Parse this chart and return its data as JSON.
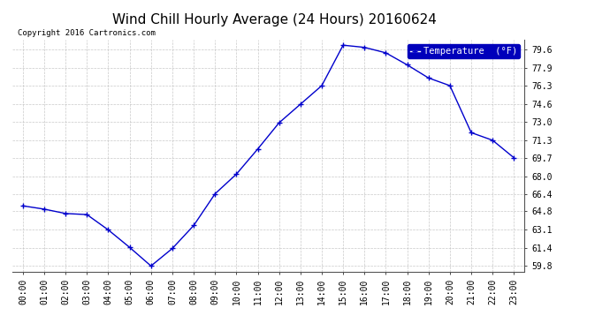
{
  "title": "Wind Chill Hourly Average (24 Hours) 20160624",
  "copyright": "Copyright 2016 Cartronics.com",
  "legend_label": "Temperature  (°F)",
  "hours": [
    "00:00",
    "01:00",
    "02:00",
    "03:00",
    "04:00",
    "05:00",
    "06:00",
    "07:00",
    "08:00",
    "09:00",
    "10:00",
    "11:00",
    "12:00",
    "13:00",
    "14:00",
    "15:00",
    "16:00",
    "17:00",
    "18:00",
    "19:00",
    "20:00",
    "21:00",
    "22:00",
    "23:00"
  ],
  "values": [
    65.3,
    65.0,
    64.6,
    64.5,
    63.1,
    61.5,
    59.8,
    61.4,
    63.5,
    66.4,
    68.2,
    70.5,
    72.9,
    74.6,
    76.3,
    80.0,
    79.8,
    79.3,
    78.2,
    77.0,
    76.3,
    72.0,
    71.3,
    69.7
  ],
  "ylim": [
    59.3,
    80.5
  ],
  "yticks": [
    59.8,
    61.4,
    63.1,
    64.8,
    66.4,
    68.0,
    69.7,
    71.3,
    73.0,
    74.6,
    76.3,
    77.9,
    79.6
  ],
  "line_color": "#0000cc",
  "marker_color": "#000066",
  "bg_color": "#ffffff",
  "plot_bg_color": "#ffffff",
  "grid_color": "#bbbbbb",
  "title_fontsize": 11,
  "copyright_fontsize": 6.5,
  "tick_fontsize": 7,
  "legend_bg": "#0000bb",
  "legend_fg": "#ffffff"
}
